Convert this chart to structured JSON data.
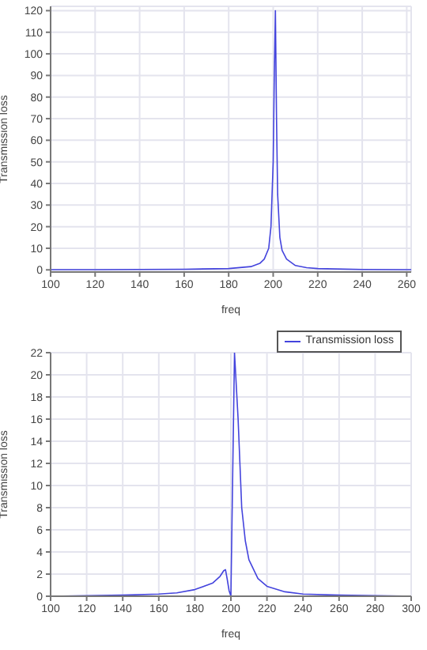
{
  "chart_data": [
    {
      "type": "line",
      "xlabel": "freq",
      "ylabel": "Transmission loss",
      "xlim": [
        100,
        262
      ],
      "xticks": [
        100,
        120,
        140,
        160,
        180,
        200,
        220,
        240,
        260
      ],
      "ylim": [
        -1,
        122
      ],
      "yticks": [
        0,
        10,
        20,
        30,
        40,
        50,
        60,
        70,
        80,
        90,
        100,
        110,
        120
      ],
      "grid": true,
      "legend": false,
      "series": [
        {
          "color": "#4444dd",
          "x": [
            100,
            120,
            140,
            160,
            180,
            190,
            194,
            196,
            198,
            199,
            200,
            200.5,
            201,
            201.5,
            202,
            203,
            204,
            206,
            210,
            215,
            220,
            240,
            262
          ],
          "values": [
            0.1,
            0.1,
            0.2,
            0.3,
            0.6,
            1.5,
            3,
            5,
            10,
            20,
            50,
            90,
            120,
            70,
            35,
            15,
            9,
            5,
            2,
            1,
            0.6,
            0.2,
            0.1
          ]
        }
      ]
    },
    {
      "type": "line",
      "xlabel": "freq",
      "ylabel": "Transmission loss",
      "xlim": [
        100,
        300
      ],
      "xticks": [
        100,
        120,
        140,
        160,
        180,
        200,
        220,
        240,
        260,
        280,
        300
      ],
      "ylim": [
        0,
        22
      ],
      "yticks": [
        0,
        2,
        4,
        6,
        8,
        10,
        12,
        14,
        16,
        18,
        20,
        22
      ],
      "grid": true,
      "legend": "top right",
      "series": [
        {
          "name": "Transmission loss",
          "color": "#4444dd",
          "x": [
            100,
            140,
            160,
            170,
            180,
            190,
            194,
            196,
            197,
            198,
            199,
            200,
            201,
            202,
            203,
            204,
            206,
            208,
            210,
            215,
            220,
            230,
            240,
            260,
            300
          ],
          "values": [
            0,
            0.1,
            0.2,
            0.3,
            0.6,
            1.2,
            1.8,
            2.3,
            2.4,
            1.5,
            0.5,
            0,
            11,
            22,
            19,
            16,
            8,
            5,
            3.3,
            1.6,
            0.9,
            0.4,
            0.2,
            0.1,
            0
          ]
        }
      ]
    }
  ]
}
